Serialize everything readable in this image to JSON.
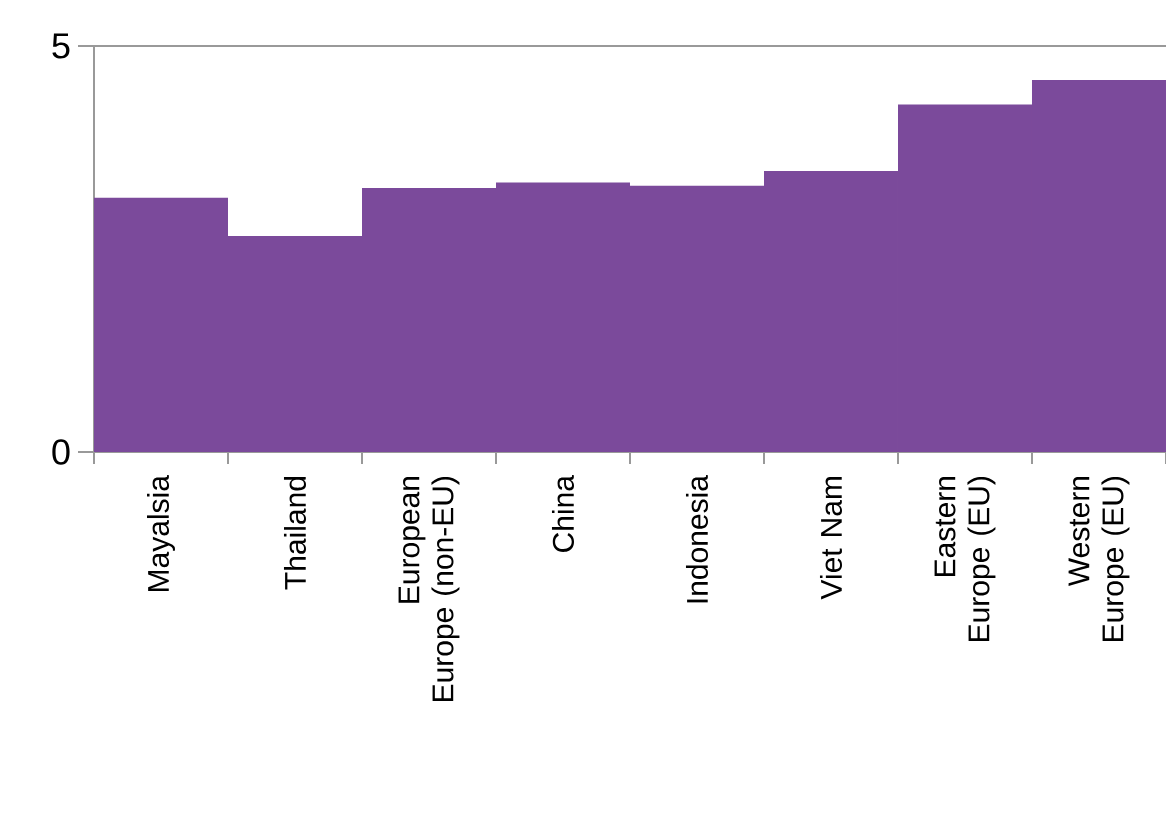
{
  "chart_data": {
    "type": "bar",
    "categories": [
      "Mayalsia",
      "Thailand",
      "European Europe (non-EU)",
      "China",
      "Indonesia",
      "Viet Nam",
      "Eastern Europe (EU)",
      "Western Europe (EU)"
    ],
    "values": [
      3.13,
      2.66,
      3.25,
      3.32,
      3.28,
      3.46,
      4.28,
      4.58
    ],
    "color": "#7b4a9b",
    "ylim": [
      0,
      5
    ],
    "yticks": [
      0,
      5
    ]
  }
}
